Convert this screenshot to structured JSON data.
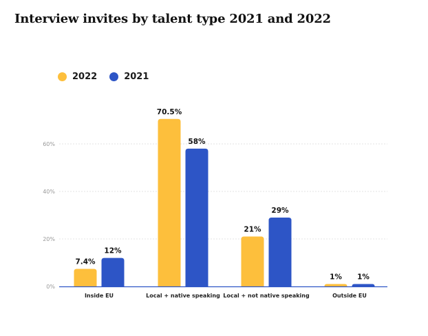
{
  "chart_data": {
    "type": "bar",
    "title": "Interview invites by talent type 2021 and 2022",
    "categories": [
      "Inside EU",
      "Local + native speaking",
      "Local + not native speaking",
      "Outside EU"
    ],
    "series": [
      {
        "name": "2022",
        "color": "#FDBF3C",
        "values": [
          7.4,
          70.5,
          21,
          1
        ],
        "labels": [
          "7.4%",
          "70.5%",
          "21%",
          "1%"
        ]
      },
      {
        "name": "2021",
        "color": "#2D55C6",
        "values": [
          12,
          58,
          29,
          1
        ],
        "labels": [
          "12%",
          "58%",
          "29%",
          "1%"
        ]
      }
    ],
    "yticks": [
      0,
      20,
      40,
      60
    ],
    "ytick_labels": [
      "0%",
      "20%",
      "40%",
      "60%"
    ],
    "ylim": [
      0,
      75
    ],
    "grid": true,
    "legend_position": "top-left",
    "axis_color": "#2D55C6",
    "grid_color": "#e3e3e3"
  }
}
